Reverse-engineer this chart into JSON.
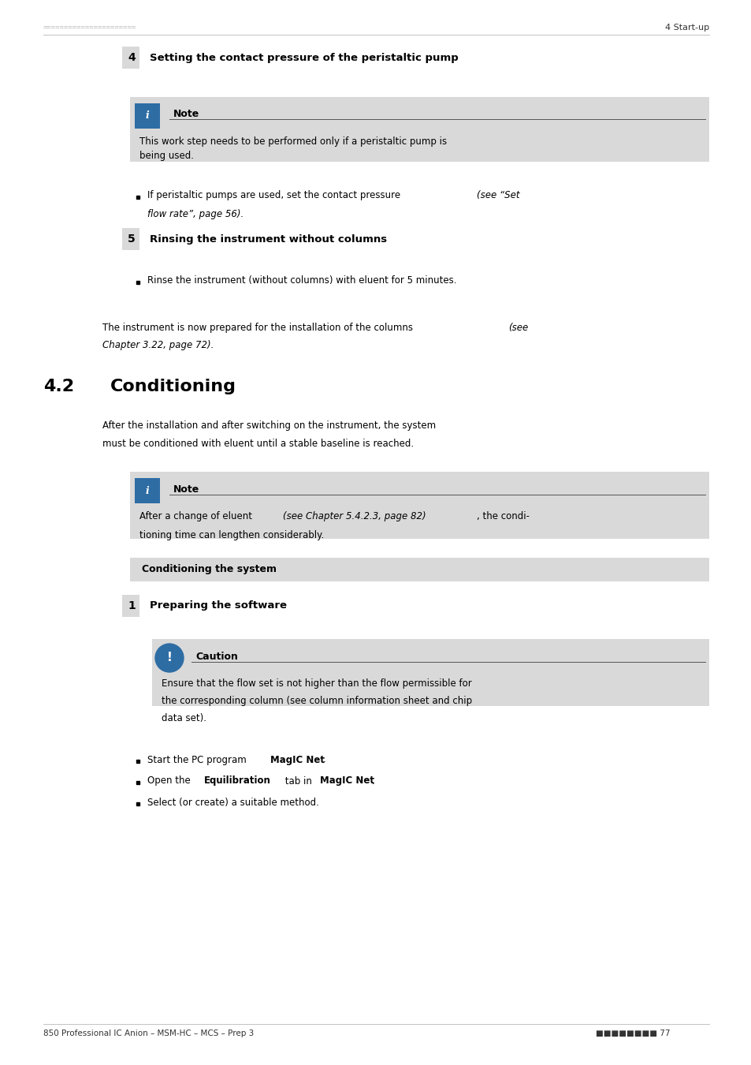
{
  "page_width": 9.54,
  "page_height": 13.5,
  "bg_color": "#ffffff",
  "header_dots_color": "#aaaaaa",
  "header_right_text": "4 Start-up",
  "footer_left_text": "850 Professional IC Anion – MSM-HC – MCS – Prep 3",
  "footer_right_text": "77",
  "footer_dots": "■■■■■■■■",
  "note_bg": "#d9d9d9",
  "caution_bg": "#d9d9d9",
  "section_label_bg": "#d9d9d9",
  "icon_info_bg": "#2e6da4",
  "icon_caution_bg": "#2e6da4",
  "step4_num": "4",
  "step4_title": "Setting the contact pressure of the peristaltic pump",
  "note1_title": "Note",
  "note1_body": "This work step needs to be performed only if a peristaltic pump is\nbeing used.",
  "bullet1": "If peristaltic pumps are used, set the contact pressure (see “Set\nflow rate”, page 56).",
  "bullet1_italic": "(see “Set\nflow rate”, page 56)",
  "step5_num": "5",
  "step5_title": "Rinsing the instrument without columns",
  "bullet2": "Rinse the instrument (without columns) with eluent for 5 minutes.",
  "closing_text": "The instrument is now prepared for the installation of the columns (see\nChapter 3.22, page 72).",
  "section42_num": "4.2",
  "section42_title": "Conditioning",
  "section42_body": "After the installation and after switching on the instrument, the system\nmust be conditioned with eluent until a stable baseline is reached.",
  "note2_title": "Note",
  "note2_body": "After a change of eluent (see Chapter 5.4.2.3, page 82), the condi-\ntioning time can lengthen considerably.",
  "cond_system_label": "Conditioning the system",
  "step1_num": "1",
  "step1_title": "Preparing the software",
  "caution_title": "Caution",
  "caution_body": "Ensure that the flow set is not higher than the flow permissible for\nthe corresponding column (see column information sheet and chip\ndata set).",
  "bullet3": "Start the PC program MagIC Net.",
  "bullet4": "Open the Equilibration tab in MagIC Net.",
  "bullet5": "Select (or create) a suitable method."
}
